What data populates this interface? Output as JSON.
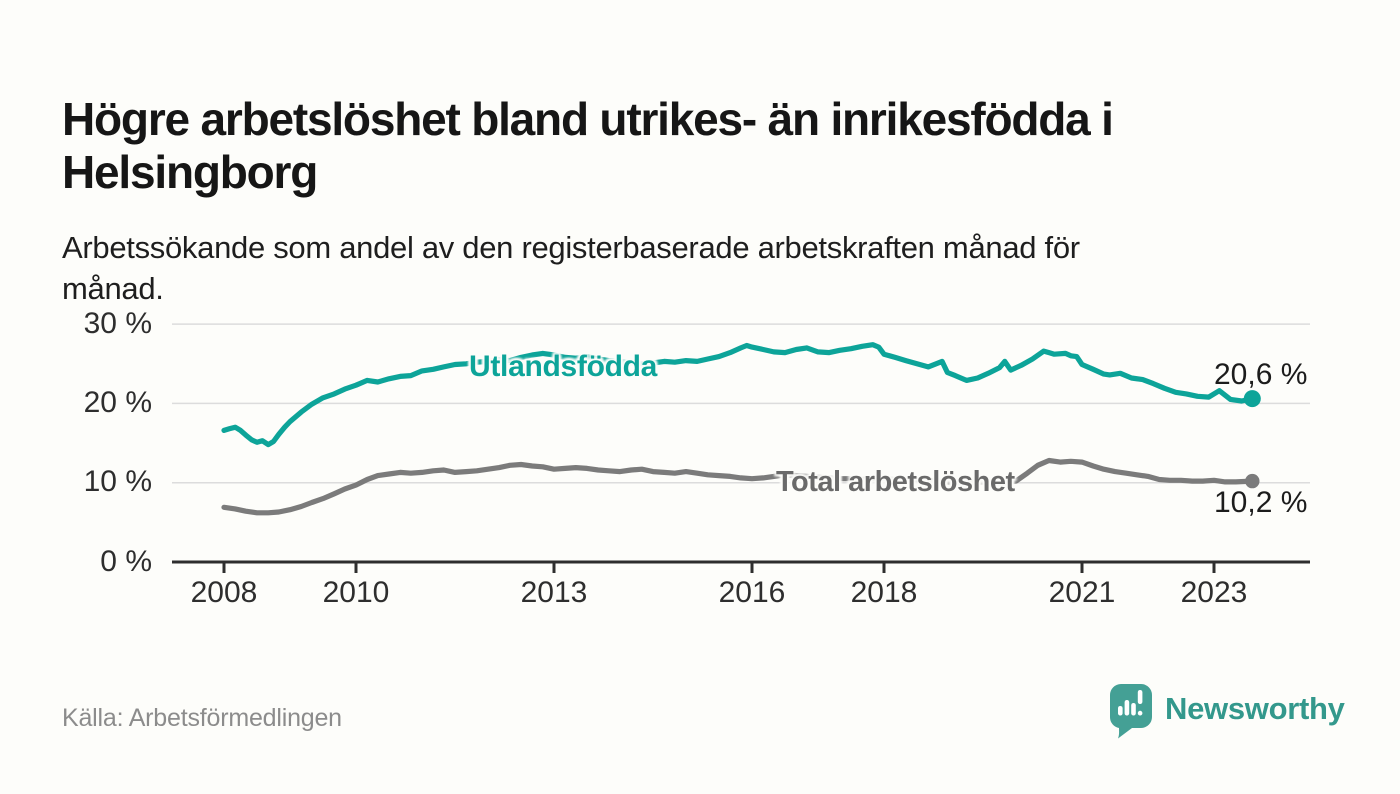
{
  "header": {
    "title_lines": [
      "Högre arbetslöshet bland utrikes- än inrikesfödda i",
      "Helsingborg"
    ],
    "subtitle_lines": [
      "Arbetssökande som andel av den registerbaserade arbetskraften månad för",
      "månad."
    ]
  },
  "chart_data": {
    "type": "line",
    "title": "Högre arbetslöshet bland utrikes- än inrikesfödda i Helsingborg",
    "subtitle": "Arbetssökande som andel av den registerbaserade arbetskraften månad för månad.",
    "unit": "%",
    "grid": true,
    "x_axis": {
      "ticks": [
        2008,
        2010,
        2013,
        2016,
        2018,
        2021,
        2023
      ],
      "tick_labels": [
        "2008",
        "2010",
        "2013",
        "2016",
        "2018",
        "2021",
        "2023"
      ],
      "range_start": 2008.0,
      "range_end": 2023.58
    },
    "y_axis": {
      "ticks": [
        0,
        10,
        20,
        30
      ],
      "tick_labels": [
        "0 %",
        "10 %",
        "20 %",
        "30 %"
      ],
      "min": 0,
      "max": 30
    },
    "series": [
      {
        "name": "Utlandsfödda",
        "color": "#0da499",
        "end_label": "20,6 %",
        "end_value": 20.6,
        "points": [
          [
            2008.0,
            16.6
          ],
          [
            2008.08,
            16.8
          ],
          [
            2008.17,
            17.0
          ],
          [
            2008.25,
            16.6
          ],
          [
            2008.33,
            16.0
          ],
          [
            2008.42,
            15.4
          ],
          [
            2008.5,
            15.1
          ],
          [
            2008.58,
            15.3
          ],
          [
            2008.67,
            14.8
          ],
          [
            2008.75,
            15.2
          ],
          [
            2008.83,
            16.1
          ],
          [
            2008.92,
            17.0
          ],
          [
            2009.0,
            17.7
          ],
          [
            2009.17,
            18.9
          ],
          [
            2009.33,
            19.9
          ],
          [
            2009.5,
            20.7
          ],
          [
            2009.67,
            21.2
          ],
          [
            2009.83,
            21.8
          ],
          [
            2010.0,
            22.3
          ],
          [
            2010.17,
            22.9
          ],
          [
            2010.33,
            22.7
          ],
          [
            2010.5,
            23.1
          ],
          [
            2010.67,
            23.4
          ],
          [
            2010.83,
            23.5
          ],
          [
            2011.0,
            24.1
          ],
          [
            2011.17,
            24.3
          ],
          [
            2011.33,
            24.6
          ],
          [
            2011.5,
            24.9
          ],
          [
            2011.67,
            25.0
          ],
          [
            2011.83,
            25.2
          ],
          [
            2012.0,
            25.3
          ],
          [
            2012.17,
            25.5
          ],
          [
            2012.33,
            25.4
          ],
          [
            2012.5,
            25.8
          ],
          [
            2012.67,
            26.1
          ],
          [
            2012.83,
            26.3
          ],
          [
            2013.0,
            26.1
          ],
          [
            2013.17,
            25.8
          ],
          [
            2013.33,
            25.7
          ],
          [
            2013.5,
            25.9
          ],
          [
            2013.67,
            25.6
          ],
          [
            2013.83,
            25.4
          ],
          [
            2014.0,
            25.3
          ],
          [
            2014.17,
            25.1
          ],
          [
            2014.33,
            25.0
          ],
          [
            2014.5,
            25.1
          ],
          [
            2014.67,
            25.3
          ],
          [
            2014.83,
            25.2
          ],
          [
            2015.0,
            25.4
          ],
          [
            2015.17,
            25.3
          ],
          [
            2015.33,
            25.6
          ],
          [
            2015.5,
            25.9
          ],
          [
            2015.67,
            26.4
          ],
          [
            2015.83,
            27.0
          ],
          [
            2015.92,
            27.3
          ],
          [
            2016.0,
            27.1
          ],
          [
            2016.17,
            26.8
          ],
          [
            2016.33,
            26.5
          ],
          [
            2016.5,
            26.4
          ],
          [
            2016.67,
            26.8
          ],
          [
            2016.83,
            27.0
          ],
          [
            2017.0,
            26.5
          ],
          [
            2017.17,
            26.4
          ],
          [
            2017.33,
            26.7
          ],
          [
            2017.5,
            26.9
          ],
          [
            2017.67,
            27.2
          ],
          [
            2017.83,
            27.4
          ],
          [
            2017.92,
            27.1
          ],
          [
            2018.0,
            26.2
          ],
          [
            2018.17,
            25.8
          ],
          [
            2018.33,
            25.4
          ],
          [
            2018.5,
            25.0
          ],
          [
            2018.67,
            24.6
          ],
          [
            2018.79,
            25.0
          ],
          [
            2018.88,
            25.3
          ],
          [
            2018.96,
            23.9
          ],
          [
            2019.08,
            23.5
          ],
          [
            2019.25,
            22.9
          ],
          [
            2019.42,
            23.2
          ],
          [
            2019.58,
            23.8
          ],
          [
            2019.75,
            24.5
          ],
          [
            2019.83,
            25.3
          ],
          [
            2019.92,
            24.2
          ],
          [
            2020.08,
            24.8
          ],
          [
            2020.25,
            25.6
          ],
          [
            2020.42,
            26.6
          ],
          [
            2020.5,
            26.4
          ],
          [
            2020.58,
            26.2
          ],
          [
            2020.75,
            26.3
          ],
          [
            2020.83,
            26.0
          ],
          [
            2020.92,
            25.9
          ],
          [
            2021.0,
            24.9
          ],
          [
            2021.17,
            24.3
          ],
          [
            2021.33,
            23.7
          ],
          [
            2021.42,
            23.6
          ],
          [
            2021.58,
            23.8
          ],
          [
            2021.75,
            23.2
          ],
          [
            2021.92,
            23.0
          ],
          [
            2022.08,
            22.5
          ],
          [
            2022.25,
            21.9
          ],
          [
            2022.42,
            21.4
          ],
          [
            2022.58,
            21.2
          ],
          [
            2022.75,
            20.9
          ],
          [
            2022.92,
            20.8
          ],
          [
            2023.08,
            21.6
          ],
          [
            2023.25,
            20.5
          ],
          [
            2023.42,
            20.3
          ],
          [
            2023.58,
            20.6
          ]
        ]
      },
      {
        "name": "Total arbetslöshet",
        "color": "#7b7b7b",
        "end_label": "10,2 %",
        "end_value": 10.2,
        "points": [
          [
            2008.0,
            6.9
          ],
          [
            2008.17,
            6.7
          ],
          [
            2008.33,
            6.4
          ],
          [
            2008.5,
            6.2
          ],
          [
            2008.67,
            6.2
          ],
          [
            2008.83,
            6.3
          ],
          [
            2009.0,
            6.6
          ],
          [
            2009.17,
            7.0
          ],
          [
            2009.33,
            7.5
          ],
          [
            2009.5,
            8.0
          ],
          [
            2009.67,
            8.6
          ],
          [
            2009.83,
            9.2
          ],
          [
            2010.0,
            9.7
          ],
          [
            2010.17,
            10.4
          ],
          [
            2010.33,
            10.9
          ],
          [
            2010.5,
            11.1
          ],
          [
            2010.67,
            11.3
          ],
          [
            2010.83,
            11.2
          ],
          [
            2011.0,
            11.3
          ],
          [
            2011.17,
            11.5
          ],
          [
            2011.33,
            11.6
          ],
          [
            2011.5,
            11.3
          ],
          [
            2011.67,
            11.4
          ],
          [
            2011.83,
            11.5
          ],
          [
            2012.0,
            11.7
          ],
          [
            2012.17,
            11.9
          ],
          [
            2012.33,
            12.2
          ],
          [
            2012.5,
            12.3
          ],
          [
            2012.67,
            12.1
          ],
          [
            2012.83,
            12.0
          ],
          [
            2013.0,
            11.7
          ],
          [
            2013.17,
            11.8
          ],
          [
            2013.33,
            11.9
          ],
          [
            2013.5,
            11.8
          ],
          [
            2013.67,
            11.6
          ],
          [
            2013.83,
            11.5
          ],
          [
            2014.0,
            11.4
          ],
          [
            2014.17,
            11.6
          ],
          [
            2014.33,
            11.7
          ],
          [
            2014.5,
            11.4
          ],
          [
            2014.67,
            11.3
          ],
          [
            2014.83,
            11.2
          ],
          [
            2015.0,
            11.4
          ],
          [
            2015.17,
            11.2
          ],
          [
            2015.33,
            11.0
          ],
          [
            2015.5,
            10.9
          ],
          [
            2015.67,
            10.8
          ],
          [
            2015.83,
            10.6
          ],
          [
            2016.0,
            10.5
          ],
          [
            2016.17,
            10.6
          ],
          [
            2016.33,
            10.8
          ],
          [
            2016.5,
            11.0
          ],
          [
            2016.67,
            10.9
          ],
          [
            2016.83,
            10.8
          ],
          [
            2017.0,
            10.7
          ],
          [
            2017.17,
            10.6
          ],
          [
            2017.33,
            10.5
          ],
          [
            2017.5,
            10.5
          ],
          [
            2017.67,
            10.4
          ],
          [
            2017.83,
            10.5
          ],
          [
            2018.0,
            10.5
          ],
          [
            2018.17,
            10.4
          ],
          [
            2018.33,
            10.3
          ],
          [
            2018.5,
            10.4
          ],
          [
            2018.67,
            10.3
          ],
          [
            2018.83,
            10.2
          ],
          [
            2019.0,
            10.0
          ],
          [
            2019.17,
            10.1
          ],
          [
            2019.33,
            10.0
          ],
          [
            2019.5,
            10.1
          ],
          [
            2019.67,
            9.9
          ],
          [
            2019.83,
            10.0
          ],
          [
            2020.0,
            10.2
          ],
          [
            2020.17,
            11.2
          ],
          [
            2020.33,
            12.2
          ],
          [
            2020.5,
            12.8
          ],
          [
            2020.67,
            12.6
          ],
          [
            2020.83,
            12.7
          ],
          [
            2021.0,
            12.6
          ],
          [
            2021.17,
            12.1
          ],
          [
            2021.33,
            11.7
          ],
          [
            2021.5,
            11.4
          ],
          [
            2021.67,
            11.2
          ],
          [
            2021.83,
            11.0
          ],
          [
            2022.0,
            10.8
          ],
          [
            2022.17,
            10.4
          ],
          [
            2022.33,
            10.3
          ],
          [
            2022.5,
            10.3
          ],
          [
            2022.67,
            10.2
          ],
          [
            2022.83,
            10.2
          ],
          [
            2023.0,
            10.3
          ],
          [
            2023.17,
            10.1
          ],
          [
            2023.33,
            10.1
          ],
          [
            2023.58,
            10.2
          ]
        ]
      }
    ]
  },
  "footer": {
    "source": "Källa: Arbetsförmedlingen",
    "brand": "Newsworthy"
  },
  "colors": {
    "accent_teal": "#0da499",
    "line_gray": "#7b7b7b",
    "label_gray": "#6a6a6a",
    "logo_teal": "#44a095",
    "wordmark_teal": "#33988c",
    "grid": "#dcdcdc",
    "axis": "#2e2e2e",
    "background": "#fdfdfa"
  }
}
